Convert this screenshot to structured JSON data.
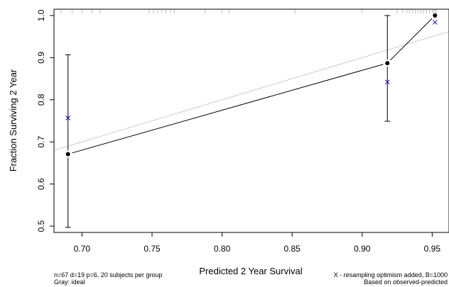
{
  "chart_data": {
    "type": "scatter",
    "xlabel": "Predicted  2 Year Survival",
    "ylabel": "Fraction Surviving 2 Year",
    "xlim": [
      0.68,
      0.962
    ],
    "ylim": [
      0.485,
      1.015
    ],
    "x_ticks": [
      0.7,
      0.75,
      0.8,
      0.85,
      0.9,
      0.95
    ],
    "x_tick_labels": [
      "0.70",
      "0.75",
      "0.80",
      "0.85",
      "0.90",
      "0.95"
    ],
    "y_ticks": [
      0.5,
      0.6,
      0.7,
      0.8,
      0.9,
      1.0
    ],
    "y_tick_labels": [
      "0.5",
      "0.6",
      "0.7",
      "0.8",
      "0.9",
      "1.0"
    ],
    "grid": false,
    "ideal_line": {
      "color": "#cccccc",
      "x": [
        0.68,
        0.962
      ],
      "y": [
        0.68,
        0.962
      ]
    },
    "apparent": {
      "color": "#000000",
      "x": [
        0.69,
        0.918,
        0.952
      ],
      "y": [
        0.671,
        0.887,
        1.0
      ],
      "ci_lower": [
        0.497,
        0.749,
        null
      ],
      "ci_upper": [
        0.907,
        1.0,
        null
      ]
    },
    "optimism_corrected": {
      "color": "#0000cc",
      "marker": "x",
      "x": [
        0.69,
        0.918,
        0.952
      ],
      "y": [
        0.757,
        0.842,
        0.984
      ]
    },
    "rug_top": [
      0.685,
      0.693,
      0.7,
      0.707,
      0.713,
      0.748,
      0.751,
      0.754,
      0.757,
      0.76,
      0.763,
      0.766,
      0.788,
      0.8,
      0.805,
      0.852,
      0.9,
      0.925,
      0.929,
      0.932,
      0.934,
      0.936,
      0.938,
      0.94,
      0.942,
      0.944,
      0.946,
      0.948,
      0.95,
      0.951,
      0.952,
      0.953
    ]
  },
  "footnotes": {
    "left_line1": "n=67 d=19 p=6, 20 subjects per group",
    "left_line2": "Gray: ideal",
    "right_line1": "X - resampling optimism added, B=1000",
    "right_line2": "Based on observed-predicted"
  }
}
